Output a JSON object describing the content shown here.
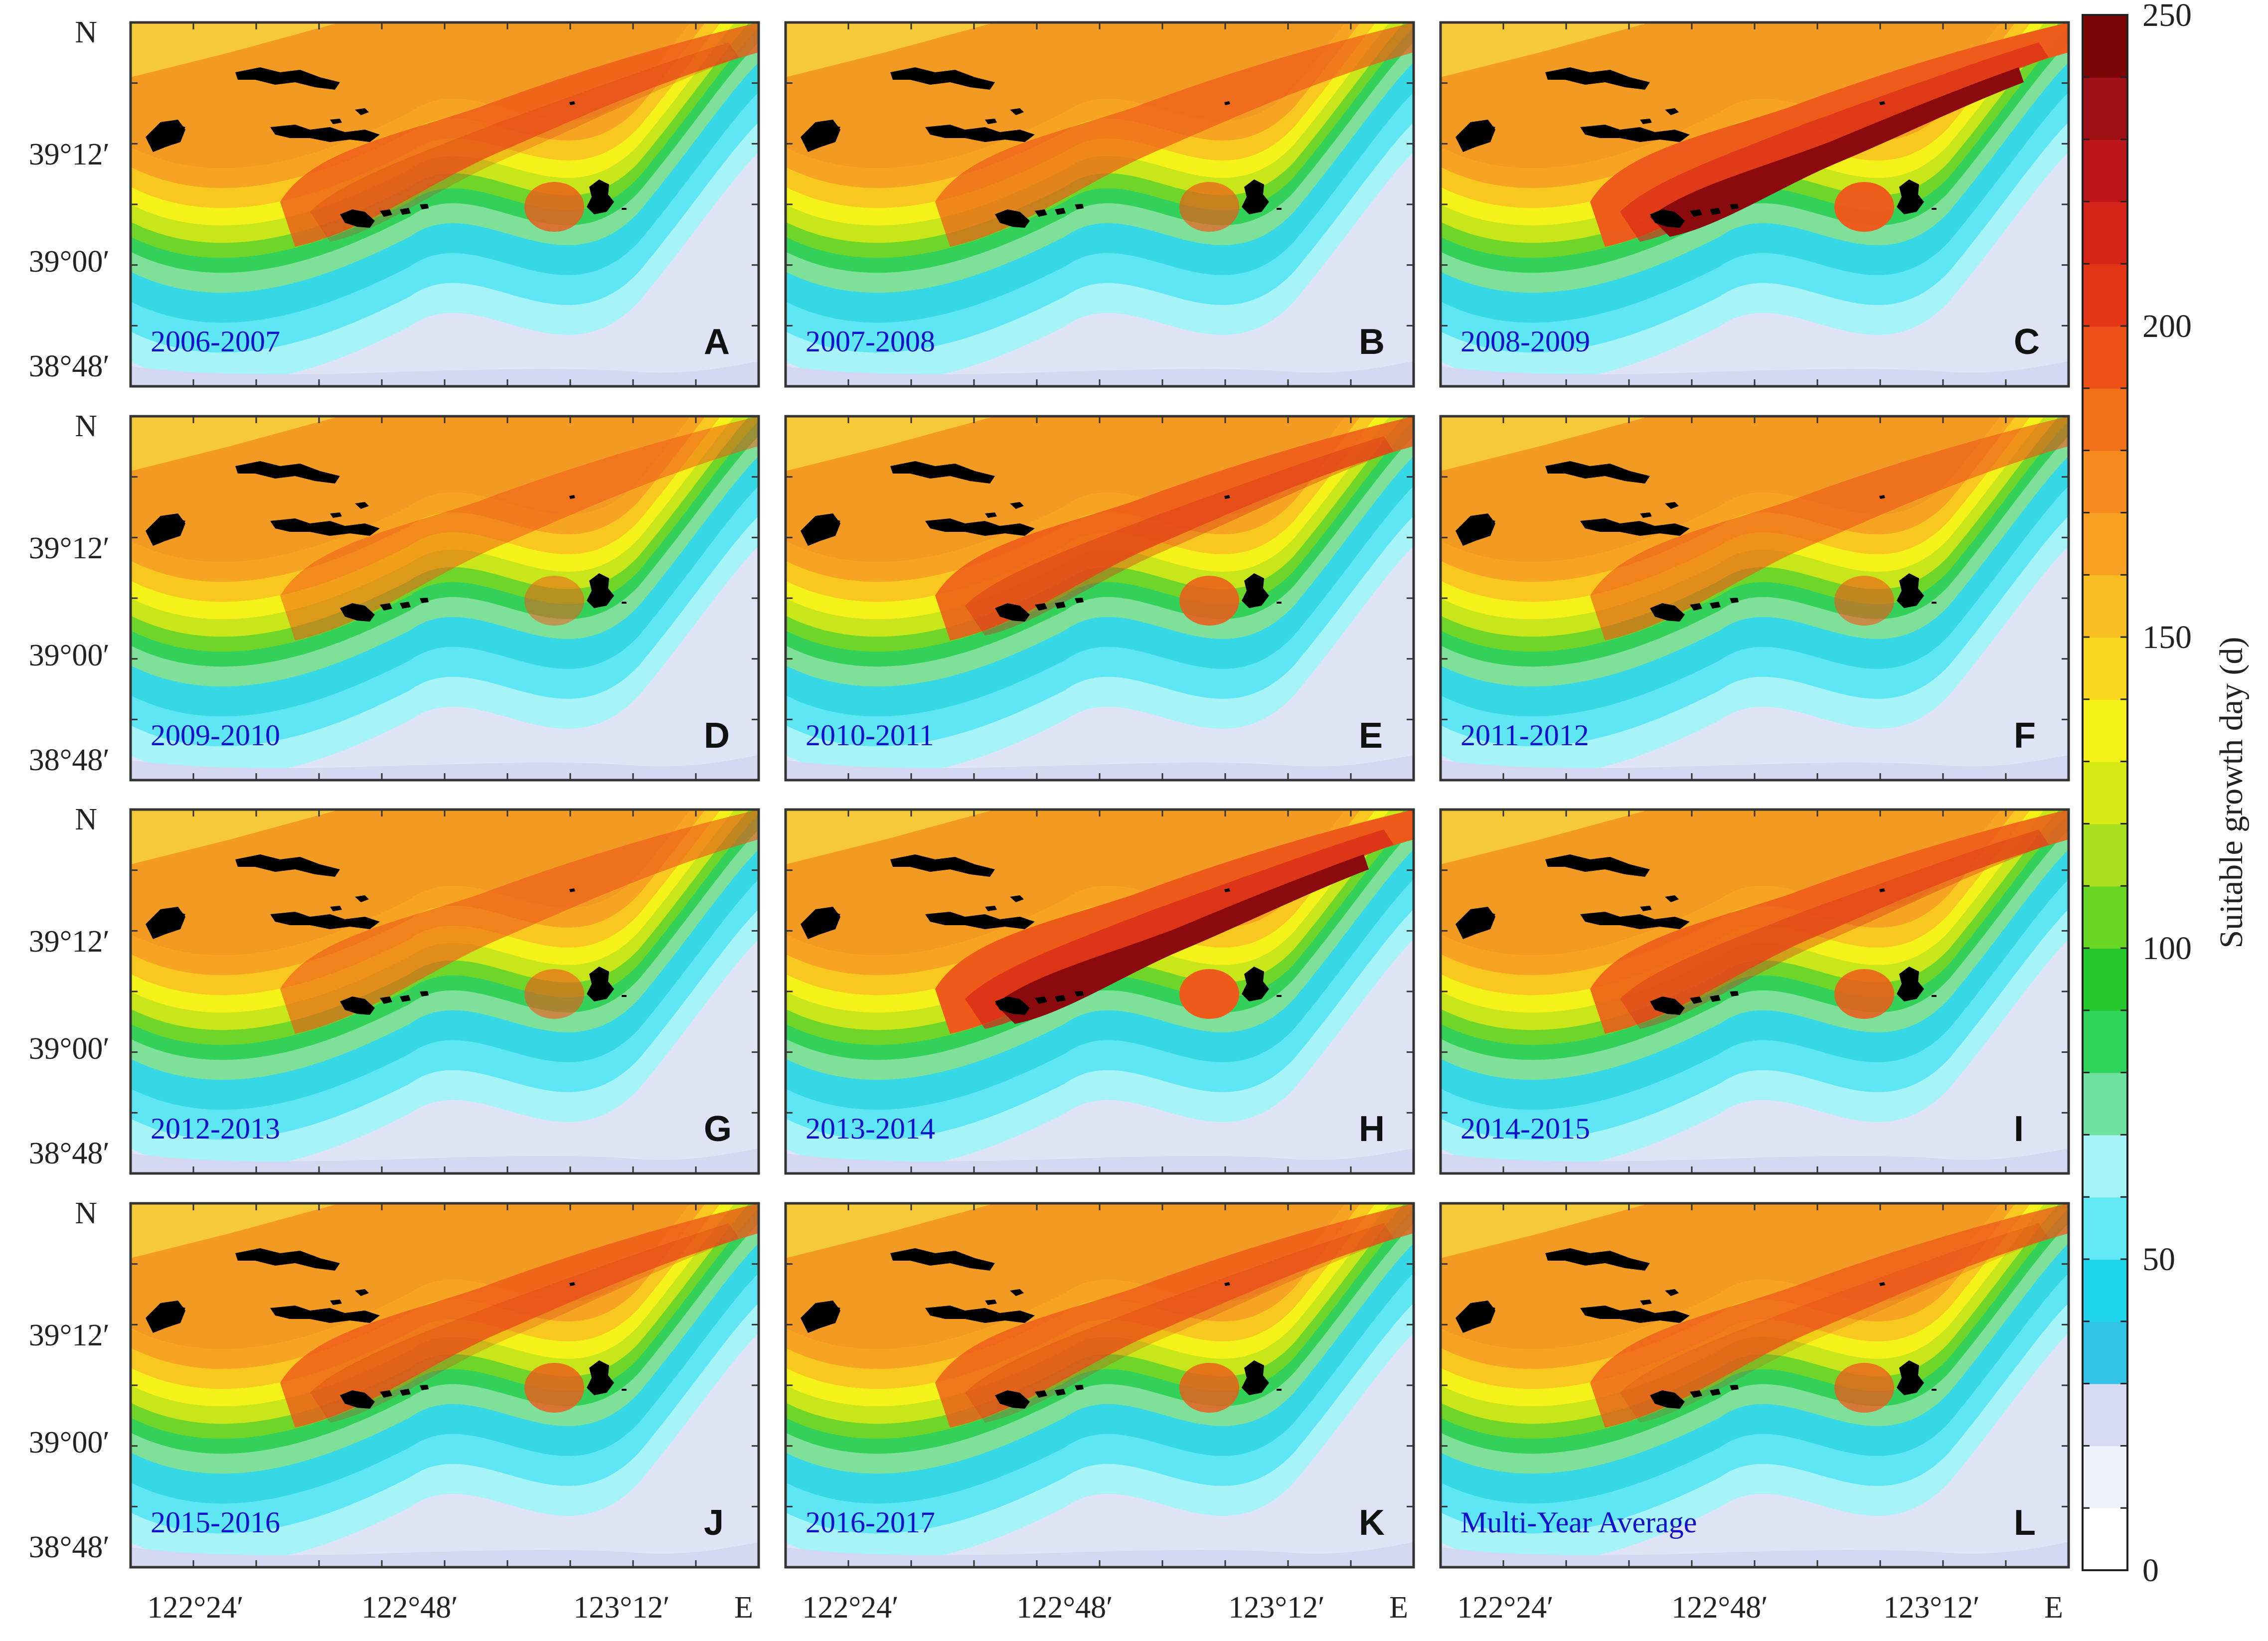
{
  "axes": {
    "y_ticks": [
      "N",
      "39°12′",
      "39°00′",
      "38°48′"
    ],
    "x_ticks": [
      "122°24′",
      "122°48′",
      "123°12′",
      "E"
    ]
  },
  "panels": [
    {
      "label": "A",
      "years": "2006-2007",
      "intensity": 0.95
    },
    {
      "label": "B",
      "years": "2007-2008",
      "intensity": 0.85
    },
    {
      "label": "C",
      "years": "2008-2009",
      "intensity": 1.12
    },
    {
      "label": "D",
      "years": "2009-2010",
      "intensity": 0.72
    },
    {
      "label": "E",
      "years": "2010-2011",
      "intensity": 1.0
    },
    {
      "label": "F",
      "years": "2011-2012",
      "intensity": 0.8
    },
    {
      "label": "G",
      "years": "2012-2013",
      "intensity": 0.8
    },
    {
      "label": "H",
      "years": "2013-2014",
      "intensity": 1.15
    },
    {
      "label": "I",
      "years": "2014-2015",
      "intensity": 1.0
    },
    {
      "label": "J",
      "years": "2015-2016",
      "intensity": 0.95
    },
    {
      "label": "K",
      "years": "2016-2017",
      "intensity": 0.95
    },
    {
      "label": "L",
      "years": "Multi-Year Average",
      "intensity": 0.92
    }
  ],
  "colorbar": {
    "title": "Suitable growth day (d)",
    "ticks": [
      "0",
      "50",
      "100",
      "150",
      "200",
      "250"
    ],
    "levels": [
      "#ffffff",
      "#eef0fa",
      "#d7daf2",
      "#33c3e8",
      "#1fd6ee",
      "#63e8f6",
      "#a6f3f8",
      "#6ee0a0",
      "#2fd45a",
      "#26c92d",
      "#69d624",
      "#a8e01f",
      "#d8ea14",
      "#f4f218",
      "#f8d81e",
      "#f8bd22",
      "#f8a022",
      "#f68a1e",
      "#f2701a",
      "#ed5118",
      "#e43516",
      "#d6241a",
      "#bc161a",
      "#a00e16",
      "#7c0508"
    ]
  }
}
